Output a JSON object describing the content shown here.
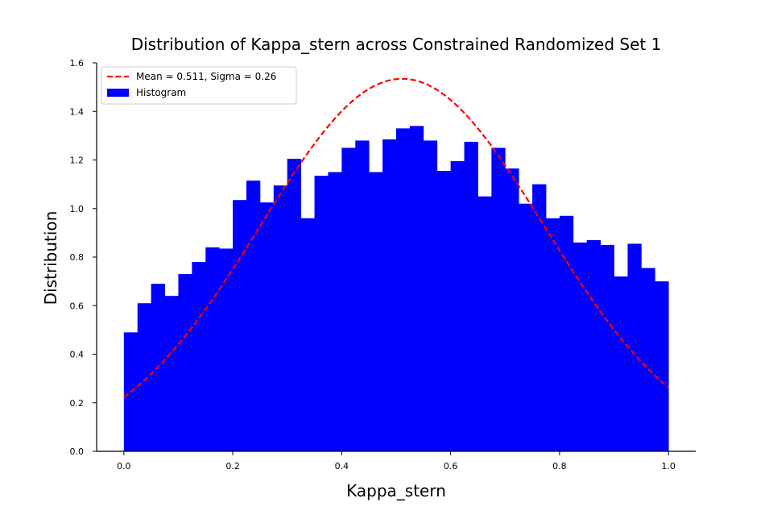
{
  "chart_data": {
    "type": "bar",
    "title": "Distribution of Kappa_stern across Constrained Randomized Set 1",
    "xlabel": "Kappa_stern",
    "ylabel": "Distribution",
    "xlim": [
      -0.05,
      1.05
    ],
    "ylim": [
      0.0,
      1.6
    ],
    "xticks": [
      "0.0",
      "0.2",
      "0.4",
      "0.6",
      "0.8",
      "1.0"
    ],
    "yticks": [
      "0.0",
      "0.2",
      "0.4",
      "0.6",
      "0.8",
      "1.0",
      "1.2",
      "1.4",
      "1.6"
    ],
    "grid": false,
    "legend_position": "top-left",
    "histogram": {
      "name": "Histogram",
      "color": "#0000ff",
      "bin_start": 0.0,
      "bin_end": 1.0,
      "values": [
        0.49,
        0.61,
        0.69,
        0.64,
        0.73,
        0.78,
        0.84,
        0.835,
        1.035,
        1.115,
        1.025,
        1.095,
        1.205,
        0.96,
        1.135,
        1.15,
        1.25,
        1.28,
        1.15,
        1.285,
        1.33,
        1.34,
        1.28,
        1.155,
        1.195,
        1.275,
        1.05,
        1.25,
        1.165,
        1.02,
        1.1,
        0.96,
        0.97,
        0.86,
        0.87,
        0.85,
        0.72,
        0.855,
        0.755,
        0.7
      ]
    },
    "fit": {
      "name": "Mean = 0.511, Sigma = 0.26",
      "color": "#ff0000",
      "style": "dashed",
      "mean": 0.511,
      "sigma": 0.26
    }
  }
}
